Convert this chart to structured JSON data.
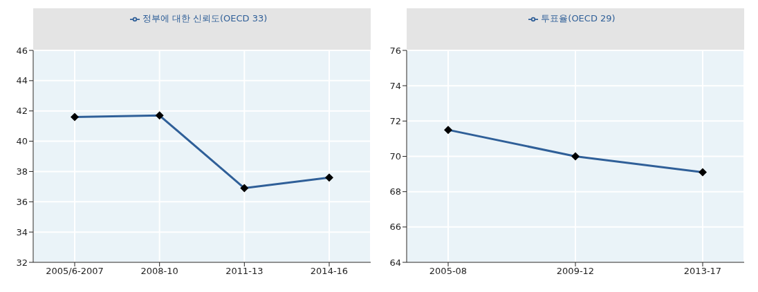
{
  "chart_data": [
    {
      "type": "line",
      "categories": [
        "2005/6-2007",
        "2008-10",
        "2011-13",
        "2014-16"
      ],
      "series": [
        {
          "name": "정부에 대한 신뢰도(OECD 33)",
          "color": "#2f5f98",
          "values": [
            41.6,
            41.7,
            36.9,
            37.6
          ]
        }
      ],
      "ylim": [
        32,
        46
      ],
      "yticks": [
        32,
        34,
        36,
        38,
        40,
        42,
        44,
        46
      ],
      "grid": true,
      "legend": "top",
      "marker": "diamond",
      "line_style": "solid"
    },
    {
      "type": "line",
      "categories": [
        "2005-08",
        "2009-12",
        "2013-17"
      ],
      "series": [
        {
          "name": "투표율(OECD 29)",
          "color": "#2f5f98",
          "values": [
            71.5,
            70.0,
            69.1
          ]
        }
      ],
      "ylim": [
        64,
        76
      ],
      "yticks": [
        64,
        66,
        68,
        70,
        72,
        74,
        76
      ],
      "grid": true,
      "legend": "top",
      "marker": "diamond",
      "line_style": "solid"
    }
  ]
}
